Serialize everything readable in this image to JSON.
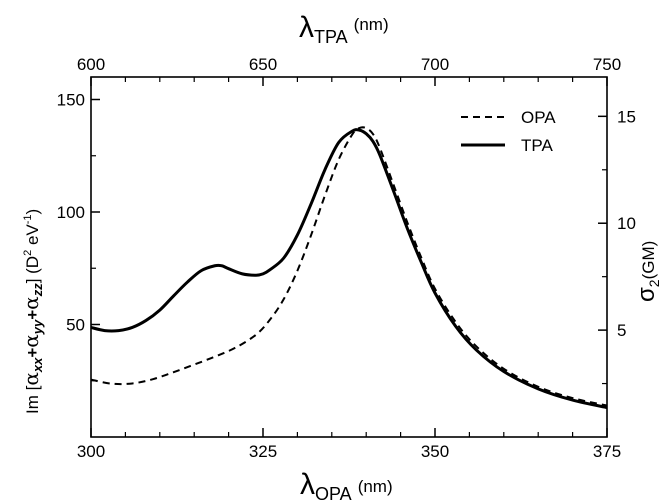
{
  "chart_data": {
    "type": "line",
    "x_bottom": {
      "label_symbol": "λ",
      "label_subscript": "OPA",
      "label_unit": "(nm)",
      "range": [
        300,
        375
      ],
      "ticks": [
        300,
        325,
        350,
        375
      ],
      "tick_labels": [
        "300",
        "325",
        "350",
        "375"
      ]
    },
    "x_top": {
      "label_symbol": "λ",
      "label_subscript": "TPA",
      "label_unit": "(nm)",
      "range": [
        600,
        750
      ],
      "ticks": [
        600,
        650,
        700,
        750
      ],
      "tick_labels": [
        "600",
        "650",
        "700",
        "750"
      ]
    },
    "y_left": {
      "label_parts": [
        "Im [",
        "α",
        "xx",
        "+",
        "α",
        "yy",
        "+",
        "α",
        "zz",
        "] (D",
        "2",
        " eV",
        "-1",
        ")"
      ],
      "range": [
        0,
        160
      ],
      "ticks": [
        50,
        100,
        150
      ],
      "tick_labels": [
        "50",
        "100",
        "150"
      ]
    },
    "y_right": {
      "label_symbol": "σ",
      "label_subscript": "2",
      "label_unit": "(GM)",
      "range": [
        0,
        16.84
      ],
      "ticks": [
        5,
        10,
        15
      ],
      "tick_labels": [
        "5",
        "10",
        "15"
      ]
    },
    "legend": {
      "position": "top-right",
      "entries": [
        "OPA",
        "TPA"
      ]
    },
    "series": [
      {
        "name": "OPA",
        "style": "dashed",
        "axis": "left",
        "x": [
          300,
          303,
          306,
          309,
          312,
          315,
          318,
          321,
          324,
          326,
          328,
          330,
          332,
          334,
          336,
          338,
          339,
          340,
          341,
          342,
          344,
          346,
          348,
          350,
          353,
          356,
          360,
          365,
          370,
          375
        ],
        "y": [
          25.5,
          23.7,
          23.8,
          25.7,
          28.8,
          32.2,
          35.7,
          39.7,
          45.5,
          52.1,
          61.2,
          73.9,
          89.8,
          107.3,
          123.3,
          134.6,
          137.3,
          137.3,
          134.6,
          128.4,
          111.9,
          95.2,
          79.8,
          65.9,
          51.1,
          40.3,
          30.3,
          22.3,
          17.3,
          14.0
        ]
      },
      {
        "name": "TPA",
        "style": "solid",
        "axis": "left",
        "x": [
          300,
          302,
          304,
          306,
          308,
          310,
          312,
          314,
          316,
          318,
          319,
          320,
          322,
          324,
          325,
          326,
          328,
          330,
          332,
          334,
          336,
          338,
          339,
          340,
          341,
          342,
          344,
          346,
          348,
          350,
          353,
          356,
          360,
          365,
          370,
          375
        ],
        "y": [
          48.7,
          47.3,
          47.3,
          48.7,
          51.8,
          56.4,
          62.7,
          68.8,
          73.9,
          76.1,
          76.1,
          74.8,
          72.5,
          71.9,
          72.5,
          74.3,
          79.5,
          89.8,
          103.7,
          118.8,
          130.9,
          136.0,
          136.4,
          134.8,
          131.3,
          125.2,
          109.1,
          92.5,
          77.7,
          64.0,
          49.2,
          38.7,
          29.1,
          21.4,
          16.4,
          13.1
        ]
      }
    ]
  }
}
